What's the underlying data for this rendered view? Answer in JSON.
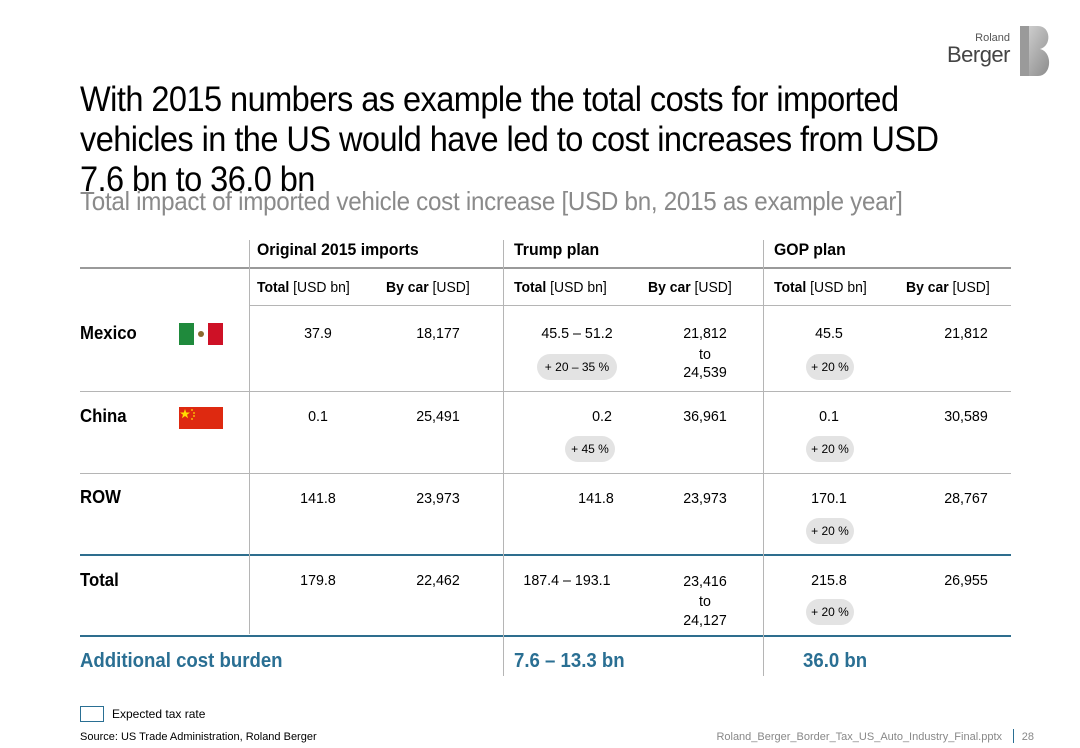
{
  "logo": {
    "line1": "Roland",
    "line2": "Berger"
  },
  "title": "With 2015 numbers as example the total costs for imported vehicles in the US would have led to cost increases from USD 7.6 bn to 36.0 bn",
  "subtitle": "Total impact of  imported vehicle cost increase [USD bn, 2015 as example year]",
  "groups": {
    "original": "Original 2015 imports",
    "trump": "Trump plan",
    "gop": "GOP plan"
  },
  "col_headers": {
    "total_bold": "Total",
    "total_rest": " [USD bn]",
    "bycar_bold": "By car",
    "bycar_rest": " [USD]"
  },
  "rows": {
    "mexico": {
      "label": "Mexico",
      "orig_total": "37.9",
      "orig_car": "18,177",
      "trump_total": "45.5 – 51.2",
      "trump_badge": "+ 20 – 35 %",
      "trump_car_1": "21,812",
      "trump_car_2": "to",
      "trump_car_3": "24,539",
      "gop_total": "45.5",
      "gop_badge": "+ 20 %",
      "gop_car": "21,812"
    },
    "china": {
      "label": "China",
      "orig_total": "0.1",
      "orig_car": "25,491",
      "trump_total": "0.2",
      "trump_badge": "+ 45 %",
      "trump_car": "36,961",
      "gop_total": "0.1",
      "gop_badge": "+ 20 %",
      "gop_car": "30,589"
    },
    "row": {
      "label": "ROW",
      "orig_total": "141.8",
      "orig_car": "23,973",
      "trump_total": "141.8",
      "trump_car": "23,973",
      "gop_total": "170.1",
      "gop_badge": "+ 20 %",
      "gop_car": "28,767"
    },
    "total": {
      "label": "Total",
      "orig_total": "179.8",
      "orig_car": "22,462",
      "trump_total": "187.4 – 193.1",
      "trump_car_1": "23,416",
      "trump_car_2": "to",
      "trump_car_3": "24,127",
      "gop_total": "215.8",
      "gop_badge": "+ 20 %",
      "gop_car": "26,955"
    }
  },
  "additional": {
    "label": "Additional cost burden",
    "trump": "7.6 – 13.3 bn",
    "gop": "36.0 bn"
  },
  "legend": "Expected tax rate",
  "source": "Source: US Trade Administration, Roland Berger",
  "filename": "Roland_Berger_Border_Tax_US_Auto_Industry_Final.pptx",
  "page": "28",
  "colors": {
    "accent": "#2a6f93",
    "badge": "#e3e3e3",
    "mexico_green": "#1f8a3c",
    "mexico_red": "#ce1126",
    "china_red": "#de2910",
    "china_star": "#ffde00"
  }
}
